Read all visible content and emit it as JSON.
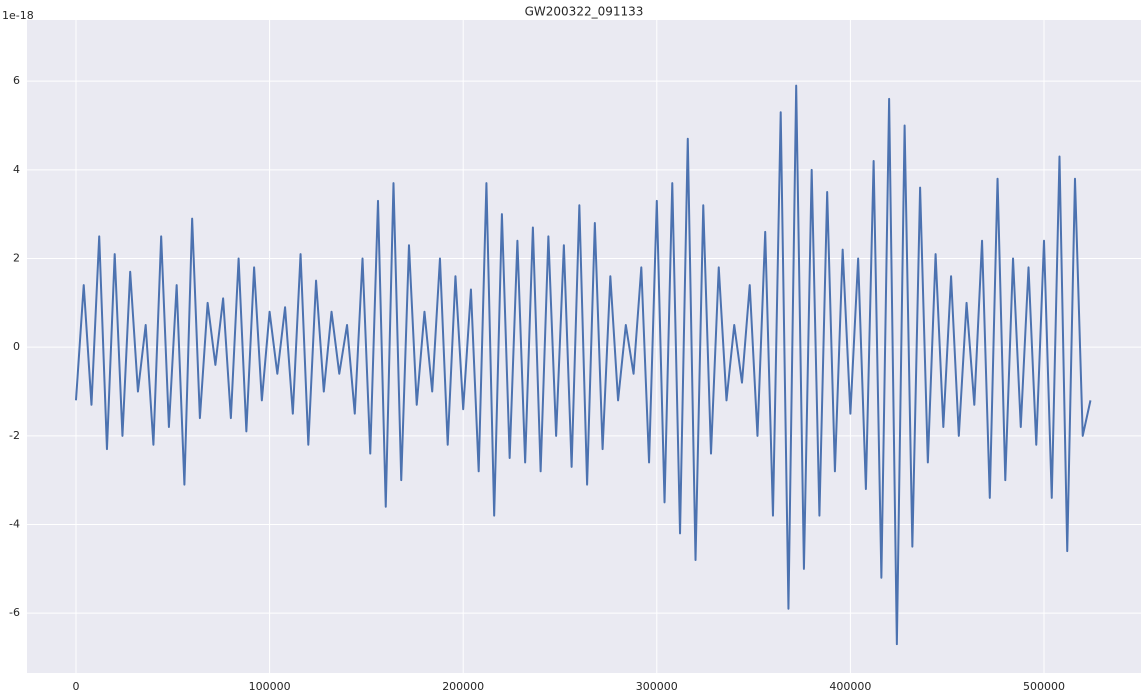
{
  "chart_data": {
    "type": "line",
    "title": "GW200322_091133",
    "y_offset_label": "1e-18",
    "x": [
      0,
      4000,
      8000,
      12000,
      16000,
      20000,
      24000,
      28000,
      32000,
      36000,
      40000,
      44000,
      48000,
      52000,
      56000,
      60000,
      64000,
      68000,
      72000,
      76000,
      80000,
      84000,
      88000,
      92000,
      96000,
      100000,
      104000,
      108000,
      112000,
      116000,
      120000,
      124000,
      128000,
      132000,
      136000,
      140000,
      144000,
      148000,
      152000,
      156000,
      160000,
      164000,
      168000,
      172000,
      176000,
      180000,
      184000,
      188000,
      192000,
      196000,
      200000,
      204000,
      208000,
      212000,
      216000,
      220000,
      224000,
      228000,
      232000,
      236000,
      240000,
      244000,
      248000,
      252000,
      256000,
      260000,
      264000,
      268000,
      272000,
      276000,
      280000,
      284000,
      288000,
      292000,
      296000,
      300000,
      304000,
      308000,
      312000,
      316000,
      320000,
      324000,
      328000,
      332000,
      336000,
      340000,
      344000,
      348000,
      352000,
      356000,
      360000,
      364000,
      368000,
      372000,
      376000,
      380000,
      384000,
      388000,
      392000,
      396000,
      400000,
      404000,
      408000,
      412000,
      416000,
      420000,
      424000,
      428000,
      432000,
      436000,
      440000,
      444000,
      448000,
      452000,
      456000,
      460000,
      464000,
      468000,
      472000,
      476000,
      480000,
      484000,
      488000,
      492000,
      496000,
      500000,
      504000,
      508000,
      512000,
      516000,
      520000,
      524000
    ],
    "series": [
      {
        "color": "#4c72b0",
        "values": [
          -1.2,
          1.4,
          -1.3,
          2.5,
          -2.3,
          2.1,
          -2.0,
          1.7,
          -1.0,
          0.5,
          -2.2,
          2.5,
          -1.8,
          1.4,
          -3.1,
          2.9,
          -1.6,
          1.0,
          -0.4,
          1.1,
          -1.6,
          2.0,
          -1.9,
          1.8,
          -1.2,
          0.8,
          -0.6,
          0.9,
          -1.5,
          2.1,
          -2.2,
          1.5,
          -1.0,
          0.8,
          -0.6,
          0.5,
          -1.5,
          2.0,
          -2.4,
          3.3,
          -3.6,
          3.7,
          -3.0,
          2.3,
          -1.3,
          0.8,
          -1.0,
          2.0,
          -2.2,
          1.6,
          -1.4,
          1.3,
          -2.8,
          3.7,
          -3.8,
          3.0,
          -2.5,
          2.4,
          -2.6,
          2.7,
          -2.8,
          2.5,
          -2.0,
          2.3,
          -2.7,
          3.2,
          -3.1,
          2.8,
          -2.3,
          1.6,
          -1.2,
          0.5,
          -0.6,
          1.8,
          -2.6,
          3.3,
          -3.5,
          3.7,
          -4.2,
          4.7,
          -4.8,
          3.2,
          -2.4,
          1.8,
          -1.2,
          0.5,
          -0.8,
          1.4,
          -2.0,
          2.6,
          -3.8,
          5.3,
          -5.9,
          5.9,
          -5.0,
          4.0,
          -3.8,
          3.5,
          -2.8,
          2.2,
          -1.5,
          2.0,
          -3.2,
          4.2,
          -5.2,
          5.6,
          -6.7,
          5.0,
          -4.5,
          3.6,
          -2.6,
          2.1,
          -1.8,
          1.6,
          -2.0,
          1.0,
          -1.3,
          2.4,
          -3.4,
          3.8,
          -3.0,
          2.0,
          -1.8,
          1.8,
          -2.2,
          2.4,
          -3.4,
          4.3,
          -4.6,
          3.8,
          -2.0,
          -1.2
        ]
      }
    ],
    "xlim": [
      -25300,
      550100
    ],
    "ylim": [
      -7.35,
      7.38
    ],
    "xticks": [
      0,
      100000,
      200000,
      300000,
      400000,
      500000
    ],
    "yticks": [
      -6,
      -4,
      -2,
      0,
      2,
      4,
      6
    ],
    "grid": true,
    "background": "#eaeaf2"
  }
}
